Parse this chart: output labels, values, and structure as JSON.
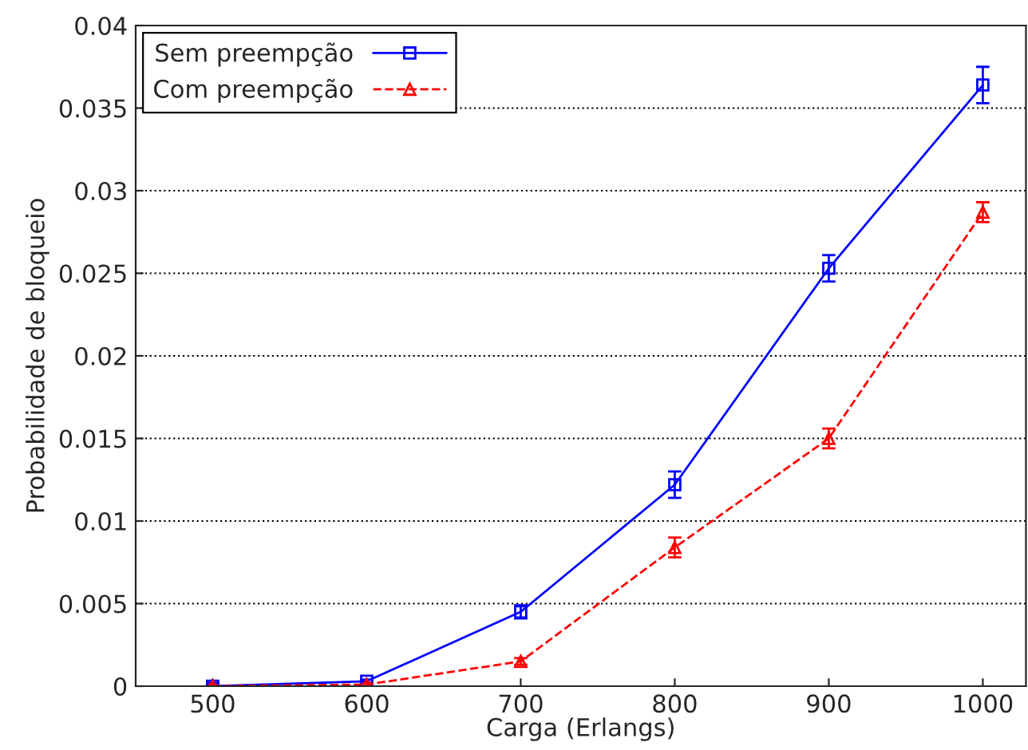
{
  "chart_data": {
    "type": "line",
    "xlabel": "Carga (Erlangs)",
    "ylabel": "Probabilidade de bloqueio",
    "x": [
      500,
      600,
      700,
      800,
      900,
      1000
    ],
    "series": [
      {
        "name": "Sem preempção",
        "color": "#0000ff",
        "marker": "square",
        "line_style": "solid",
        "values": [
          0,
          0.0003,
          0.0045,
          0.0122,
          0.0253,
          0.0364
        ],
        "errors": [
          0.0002,
          0.0001,
          0.0004,
          0.0008,
          0.0008,
          0.0011
        ]
      },
      {
        "name": "Com preempção",
        "color": "#ff0000",
        "marker": "triangle",
        "line_style": "dashed",
        "values": [
          0,
          0.0001,
          0.0015,
          0.0084,
          0.015,
          0.0287
        ],
        "errors": [
          0.0001,
          0.0001,
          0.0002,
          0.0006,
          0.0006,
          0.0006
        ]
      }
    ],
    "xlim": [
      450,
      1028
    ],
    "ylim": [
      0,
      0.04
    ],
    "xticks": [
      500,
      600,
      700,
      800,
      900,
      1000
    ],
    "yticks": [
      0,
      0.005,
      0.01,
      0.015,
      0.02,
      0.025,
      0.03,
      0.035,
      0.04
    ],
    "grid": "y",
    "legend": "top left"
  }
}
